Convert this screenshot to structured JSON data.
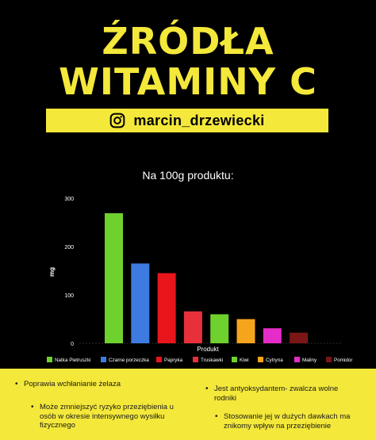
{
  "header": {
    "title_line1": "ŹRÓDŁA",
    "title_line2": "WITAMINY C",
    "handle": "marcin_drzewiecki"
  },
  "colors": {
    "accent": "#f4e83a",
    "background": "#000000"
  },
  "icons": {
    "handle_icon": "instagram-icon"
  },
  "chart_data": {
    "type": "bar",
    "title": "Na 100g produktu:",
    "xlabel": "Produkt",
    "ylabel": "mg",
    "ylim": [
      0,
      300
    ],
    "yticks": [
      0,
      100,
      200,
      300
    ],
    "grid": false,
    "legend_position": "bottom",
    "categories": [
      "Natka Pietruszki",
      "Czarne porzeczka",
      "Papryka",
      "Truskawki",
      "Kiwi",
      "Cytryna",
      "Maliny",
      "Pomidor"
    ],
    "values": [
      269,
      165,
      145,
      66,
      60,
      50,
      31,
      22
    ],
    "colors": [
      "#6fd12e",
      "#3d7be0",
      "#e8161c",
      "#e8303a",
      "#6fd12e",
      "#f5a51c",
      "#e62cc8",
      "#7a1616"
    ]
  },
  "footer": {
    "bullets": [
      "Poprawia wchłanianie żelaza",
      "Jest antyoksydantem- zwalcza wolne rodniki",
      "Może zmniejszyć ryzyko przeziębienia u osób w okresie intensywnego wysiłku fizycznego",
      "Stosowanie jej w dużych dawkach ma znikomy wpływ na przeziębienie"
    ]
  }
}
